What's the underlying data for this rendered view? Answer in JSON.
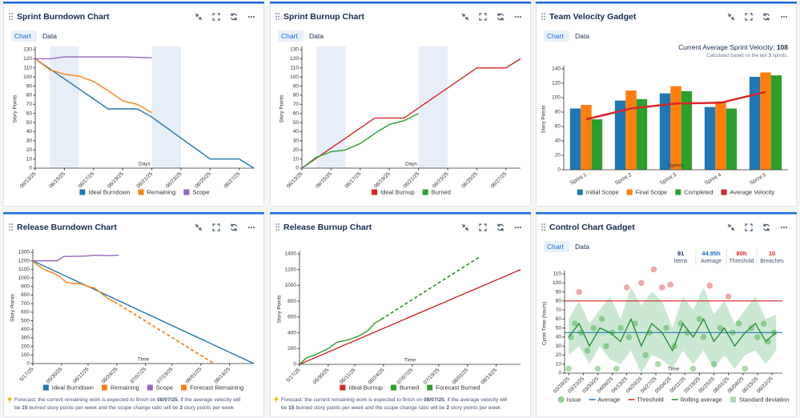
{
  "chart_data": [
    {
      "type": "line",
      "title": "Sprint Burndown Chart",
      "tabs": [
        "Chart",
        "Data"
      ],
      "x_label": "Days",
      "y_label": "Story Points",
      "xlim": [
        "06/13/25",
        "06/28/25"
      ],
      "xticks": [
        "06/13/25",
        "06/15/25",
        "06/17/25",
        "06/19/25",
        "06/21/25",
        "06/23/25",
        "06/25/25",
        "06/27/25"
      ],
      "ylim": [
        0,
        130
      ],
      "yticks": [
        0,
        10,
        20,
        30,
        40,
        50,
        60,
        70,
        80,
        90,
        100,
        110,
        120,
        130
      ],
      "shade_weekends": true,
      "series": [
        {
          "name": "Ideal Burndown",
          "color": "#1f77b4",
          "x": [
            "06/13/25",
            "06/18/25",
            "06/20/25",
            "06/21/25",
            "06/25/25",
            "06/27/25",
            "06/28/25"
          ],
          "values": [
            120,
            65,
            65,
            56,
            10,
            10,
            0
          ]
        },
        {
          "name": "Remaining",
          "color": "#ff7f0e",
          "x": [
            "06/13/25",
            "06/14/25",
            "06/15/25",
            "06/16/25",
            "06/17/25",
            "06/18/25",
            "06/19/25",
            "06/20/25",
            "06/21/25"
          ],
          "values": [
            120,
            108,
            103,
            101,
            95,
            85,
            74,
            70,
            61
          ]
        },
        {
          "name": "Scope",
          "color": "#9467bd",
          "x": [
            "06/13/25",
            "06/14/25",
            "06/15/25",
            "06/17/25",
            "06/19/25",
            "06/21/25"
          ],
          "values": [
            120,
            120,
            122,
            122,
            122,
            121
          ]
        }
      ]
    },
    {
      "type": "line",
      "title": "Sprint Burnup Chart",
      "tabs": [
        "Chart",
        "Data"
      ],
      "x_label": "Days",
      "y_label": "Story Points",
      "xlim": [
        "06/13/25",
        "06/28/25"
      ],
      "xticks": [
        "06/13/25",
        "06/15/25",
        "06/17/25",
        "06/19/25",
        "06/21/25",
        "06/23/25",
        "06/25/25",
        "06/27/25"
      ],
      "ylim": [
        0,
        130
      ],
      "yticks": [
        0,
        10,
        20,
        30,
        40,
        50,
        60,
        70,
        80,
        90,
        100,
        110,
        120,
        130
      ],
      "shade_weekends": true,
      "series": [
        {
          "name": "Ideal Burnup",
          "color": "#d62728",
          "x": [
            "06/13/25",
            "06/18/25",
            "06/20/25",
            "06/25/25",
            "06/27/25",
            "06/28/25"
          ],
          "values": [
            0,
            55,
            55,
            110,
            110,
            120
          ]
        },
        {
          "name": "Burned",
          "color": "#2ca02c",
          "x": [
            "06/13/25",
            "06/14/25",
            "06/15/25",
            "06/16/25",
            "06/17/25",
            "06/18/25",
            "06/19/25",
            "06/20/25",
            "06/21/25"
          ],
          "values": [
            0,
            12,
            18,
            20,
            27,
            38,
            48,
            52,
            60
          ]
        }
      ]
    },
    {
      "type": "bar",
      "title": "Team Velocity Gadget",
      "tabs": [
        "Chart",
        "Data"
      ],
      "x_label": "Sprints",
      "y_label": "Story Points",
      "annotation": [
        [
          {
            "text": "Current Average Sprint Velocity: "
          },
          {
            "text": 108,
            "bold": true
          }
        ],
        [
          {
            "text": "Calculated based on the last "
          },
          {
            "text": 3,
            "bold": true
          },
          {
            "text": " sprints."
          }
        ]
      ],
      "categories": [
        "Sprint 1",
        "Sprint 2",
        "Sprint 3",
        "Sprint 4",
        "Sprint 5"
      ],
      "ylim": [
        0,
        140
      ],
      "yticks": [
        0,
        20,
        40,
        60,
        80,
        100,
        120,
        140
      ],
      "series": [
        {
          "name": "Initial Scope",
          "color": "#1f77b4",
          "values": [
            85,
            96,
            106,
            87,
            129
          ]
        },
        {
          "name": "Final Scope",
          "color": "#ff7f0e",
          "values": [
            90,
            110,
            116,
            95,
            135
          ]
        },
        {
          "name": "Completed",
          "color": "#2ca02c",
          "values": [
            70,
            98,
            109,
            85,
            131
          ]
        },
        {
          "name": "Average Velocity",
          "color": "#d62728",
          "type": "line",
          "values": [
            70,
            85,
            92,
            93,
            108
          ]
        }
      ]
    },
    {
      "type": "line",
      "title": "Release Burndown Chart",
      "x_label": "Time",
      "y_label": "Story Points",
      "xlim": [
        "5/17/25",
        "08/25/25"
      ],
      "xticks": [
        "5/17/25",
        "05/30/25",
        "06/11/25",
        "06/24/25",
        "07/07/25",
        "07/19/25",
        "08/01/25",
        "08/14/25"
      ],
      "ylim": [
        0,
        1300
      ],
      "yticks": [
        0,
        100,
        200,
        300,
        400,
        500,
        600,
        700,
        800,
        900,
        1000,
        1100,
        1200,
        1300
      ],
      "series": [
        {
          "name": "Ideal Burndown",
          "color": "#1f77b4",
          "x": [
            "5/17/25",
            "08/25/25"
          ],
          "values": [
            1200,
            0
          ]
        },
        {
          "name": "Remaining",
          "color": "#ff7f0e",
          "x": [
            "5/17/25",
            "5/19/25",
            "5/22/25",
            "5/26/25",
            "5/29/25",
            "6/1/25",
            "6/3/25",
            "6/8/25",
            "6/11/25",
            "6/14/25",
            "6/17/25",
            "6/20/25",
            "6/23/25"
          ],
          "values": [
            1200,
            1150,
            1100,
            1060,
            1020,
            950,
            940,
            930,
            900,
            880,
            820,
            760,
            720
          ]
        },
        {
          "name": "Scope",
          "color": "#9467bd",
          "x": [
            "5/17/25",
            "5/28/25",
            "5/31/25",
            "6/10/25",
            "6/14/25",
            "6/20/25",
            "6/25/25"
          ],
          "values": [
            1200,
            1200,
            1250,
            1255,
            1265,
            1260,
            1265
          ]
        },
        {
          "name": "Forecast Remaining",
          "color": "#ff7f0e",
          "dash": true,
          "x": [
            "6/23/25",
            "08/07/25"
          ],
          "values": [
            720,
            0
          ]
        }
      ],
      "forecast": [
        [
          {
            "text": "Forecast: the current remaining work is expected to finish on "
          },
          {
            "text": "08/07/25",
            "bold": true
          },
          {
            "text": ", if the average velocity will"
          }
        ],
        [
          {
            "text": "be "
          },
          {
            "text": 15,
            "bold": true
          },
          {
            "text": " burned story points per week and the scope change ratio will be "
          },
          {
            "text": 2,
            "bold": true
          },
          {
            "text": " story points per week"
          }
        ]
      ]
    },
    {
      "type": "line",
      "title": "Release Burnup Chart",
      "x_label": "Time",
      "y_label": "Story Points",
      "xlim": [
        "5/17/25",
        "08/25/25"
      ],
      "xticks": [
        "5/17/25",
        "05/30/25",
        "06/11/25",
        "06/24/25",
        "07/07/25",
        "07/19/25",
        "08/01/25",
        "08/14/25"
      ],
      "ylim": [
        0,
        1400
      ],
      "yticks": [
        0,
        200,
        400,
        600,
        800,
        1000,
        1200,
        1400
      ],
      "series": [
        {
          "name": "Ideal Burnup",
          "color": "#d62728",
          "x": [
            "5/17/25",
            "08/25/25"
          ],
          "values": [
            0,
            1200
          ]
        },
        {
          "name": "Burned",
          "color": "#2ca02c",
          "x": [
            "5/17/25",
            "5/20/25",
            "5/24/25",
            "5/30/25",
            "6/3/25",
            "6/8/25",
            "6/13/25",
            "6/17/25",
            "6/20/25",
            "6/23/25"
          ],
          "values": [
            0,
            80,
            120,
            200,
            280,
            310,
            360,
            430,
            520,
            570
          ]
        },
        {
          "name": "Forecast Burned",
          "color": "#2ca02c",
          "dash": true,
          "x": [
            "6/23/25",
            "08/07/25"
          ],
          "values": [
            570,
            1370
          ]
        }
      ],
      "forecast": [
        [
          {
            "text": "Forecast: the current remaining work is expected to finish on "
          },
          {
            "text": "08/07/25",
            "bold": true
          },
          {
            "text": ", if the average velocity will"
          }
        ],
        [
          {
            "text": "be "
          },
          {
            "text": 15,
            "bold": true
          },
          {
            "text": " burned story points per week and the scope change ratio will be "
          },
          {
            "text": 2,
            "bold": true
          },
          {
            "text": " story points per week"
          }
        ]
      ]
    },
    {
      "type": "scatter",
      "title": "Control Chart Gadget",
      "tabs": [
        "Chart",
        "Data"
      ],
      "x_label": "Time",
      "y_label": "Cycle Time (hours)",
      "stats": [
        {
          "value": 91,
          "label": "Items",
          "color": "#172b4d"
        },
        {
          "value": 44.95,
          "value_label": "44.95h",
          "label": "Average",
          "color": "#1f6fd0"
        },
        {
          "value": 80,
          "value_label": "80h",
          "label": "Threshold",
          "color": "#d62728"
        },
        {
          "value": 10,
          "label": "Breaches",
          "color": "#d62728"
        }
      ],
      "xlim": [
        "03/14/25",
        "06/27/25"
      ],
      "xticks": [
        "03/16/25",
        "03/23/25",
        "03/30/25",
        "04/06/25",
        "04/13/25",
        "04/20/25",
        "04/27/25",
        "05/04/25",
        "05/11/25",
        "05/18/25",
        "05/25/25",
        "06/01/25",
        "06/08/25",
        "06/15/25",
        "06/22/25"
      ],
      "ylim": [
        0,
        110
      ],
      "yticks": [
        0,
        10,
        20,
        30,
        40,
        50,
        60,
        70,
        80,
        90,
        100,
        110
      ],
      "series": [
        {
          "name": "Issue",
          "type": "scatter",
          "color": "#2ca02c",
          "x": [
            "03/16/25",
            "03/17/25",
            "03/19/25",
            "03/21/25",
            "03/22/25",
            "03/25/25",
            "03/28/25",
            "03/30/25",
            "04/01/25",
            "04/03/25",
            "04/06/25",
            "04/08/25",
            "04/10/25",
            "04/13/25",
            "04/14/25",
            "04/17/25",
            "04/20/25",
            "04/22/25",
            "04/24/25",
            "04/26/25",
            "04/28/25",
            "04/30/25",
            "05/02/25",
            "05/04/25",
            "05/06/25",
            "05/09/25",
            "05/12/25",
            "05/15/25",
            "05/18/25",
            "05/20/25",
            "05/23/25",
            "05/25/25",
            "05/28/25",
            "06/01/25",
            "06/03/25",
            "06/06/25",
            "06/09/25",
            "06/12/25",
            "06/15/25",
            "06/18/25",
            "06/20/25",
            "06/23/25"
          ],
          "values": [
            5,
            40,
            55,
            90,
            45,
            25,
            50,
            5,
            60,
            30,
            45,
            5,
            50,
            95,
            40,
            55,
            100,
            20,
            45,
            115,
            10,
            95,
            50,
            98,
            30,
            55,
            45,
            5,
            60,
            40,
            97,
            10,
            50,
            85,
            45,
            55,
            5,
            50,
            40,
            55,
            35,
            45
          ]
        },
        {
          "name": "Average",
          "type": "line",
          "color": "#1f77b4"
        },
        {
          "name": "Threshold",
          "type": "line",
          "color": "#d62728"
        },
        {
          "name": "Rolling average",
          "type": "line",
          "color": "#1e8a2e",
          "x": [
            "03/16/25",
            "03/21/25",
            "03/26/25",
            "03/31/25",
            "04/05/25",
            "04/10/25",
            "04/15/25",
            "04/20/25",
            "04/25/25",
            "04/30/25",
            "05/05/25",
            "05/10/25",
            "05/15/25",
            "05/20/25",
            "05/25/25",
            "05/30/25",
            "06/04/25",
            "06/09/25",
            "06/14/25",
            "06/19/25",
            "06/24/25"
          ],
          "values": [
            40,
            55,
            30,
            50,
            45,
            35,
            60,
            30,
            55,
            45,
            25,
            55,
            40,
            60,
            35,
            50,
            30,
            45,
            55,
            35,
            45
          ]
        },
        {
          "name": "Standard deviation",
          "type": "band",
          "color": "#a9d9b6",
          "x": [
            "03/16/25",
            "03/21/25",
            "03/26/25",
            "03/31/25",
            "04/05/25",
            "04/10/25",
            "04/15/25",
            "04/20/25",
            "04/25/25",
            "04/30/25",
            "05/05/25",
            "05/10/25",
            "05/15/25",
            "05/20/25",
            "05/25/25",
            "05/30/25",
            "06/04/25",
            "06/09/25",
            "06/14/25",
            "06/19/25",
            "06/24/25"
          ],
          "upper": [
            60,
            80,
            55,
            70,
            85,
            60,
            95,
            75,
            90,
            80,
            50,
            85,
            70,
            95,
            65,
            80,
            55,
            70,
            85,
            60,
            65
          ],
          "lower": [
            20,
            30,
            10,
            30,
            15,
            10,
            25,
            0,
            20,
            15,
            5,
            25,
            10,
            25,
            5,
            20,
            5,
            20,
            25,
            10,
            25
          ]
        }
      ]
    }
  ]
}
